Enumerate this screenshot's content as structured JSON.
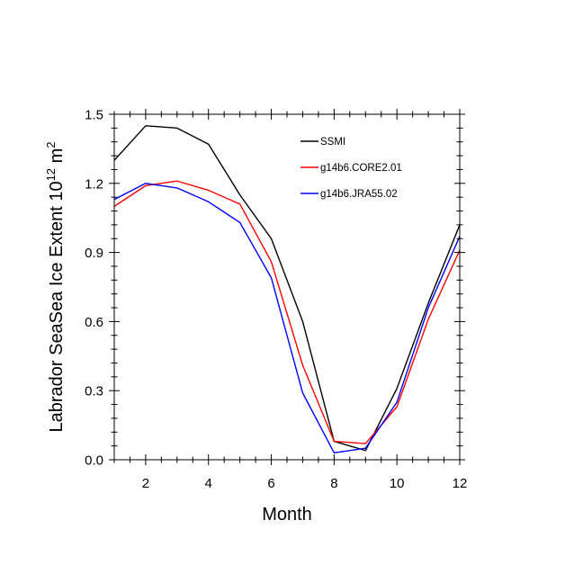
{
  "chart_data": {
    "type": "line",
    "xlabel": "Month",
    "ylabel": {
      "main": "Labrador SeaSea Ice Extent 10",
      "exponent": "12",
      "unit": "m",
      "unit_exponent": "2"
    },
    "xlim": [
      1,
      12
    ],
    "ylim": [
      0.0,
      1.5
    ],
    "xticks": [
      2,
      4,
      6,
      8,
      10,
      12
    ],
    "xtick_labels": [
      "2",
      "4",
      "6",
      "8",
      "10",
      "12"
    ],
    "yticks": [
      0.0,
      0.3,
      0.6,
      0.9,
      1.2,
      1.5
    ],
    "ytick_labels": [
      "0.0",
      "0.3",
      "0.6",
      "0.9",
      "1.2",
      "1.5"
    ],
    "x_minor_step": 0.5,
    "y_minor_step": 0.06,
    "grid": false,
    "legend_position": "top-right",
    "x": [
      1,
      2,
      3,
      4,
      5,
      6,
      7,
      8,
      9,
      10,
      11,
      12
    ],
    "series": [
      {
        "name": "SSMI",
        "color": "#000000",
        "values": [
          1.3,
          1.45,
          1.44,
          1.37,
          1.15,
          0.96,
          0.6,
          0.08,
          0.04,
          0.31,
          0.68,
          1.02
        ]
      },
      {
        "name": "g14b6.CORE2.01",
        "color": "#ff0000",
        "values": [
          1.1,
          1.19,
          1.21,
          1.17,
          1.11,
          0.86,
          0.41,
          0.08,
          0.07,
          0.23,
          0.61,
          0.91
        ]
      },
      {
        "name": "g14b6.JRA55.02",
        "color": "#0000ff",
        "values": [
          1.13,
          1.2,
          1.18,
          1.12,
          1.03,
          0.79,
          0.29,
          0.03,
          0.05,
          0.25,
          0.66,
          0.97
        ]
      }
    ]
  }
}
